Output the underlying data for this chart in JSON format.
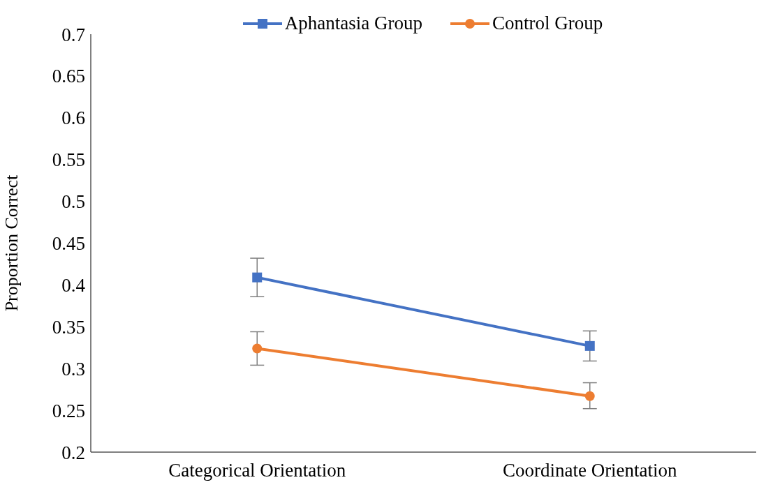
{
  "chart_data": {
    "type": "line",
    "ylabel": "Proportion Correct",
    "categories": [
      "Categorical Orientation",
      "Coordinate Orientation"
    ],
    "series": [
      {
        "name": "Aphantasia Group",
        "color": "#4472c4",
        "marker": "square",
        "values": [
          0.409,
          0.327
        ],
        "errors": [
          [
            0.386,
            0.432
          ],
          [
            0.309,
            0.345
          ]
        ]
      },
      {
        "name": "Control Group",
        "color": "#ed7d31",
        "marker": "circle",
        "values": [
          0.324,
          0.267
        ],
        "errors": [
          [
            0.304,
            0.344
          ],
          [
            0.252,
            0.283
          ]
        ]
      }
    ],
    "ylim": [
      0.2,
      0.7
    ],
    "yticks": [
      0.2,
      0.25,
      0.3,
      0.35,
      0.4,
      0.45,
      0.5,
      0.55,
      0.6,
      0.65,
      0.7
    ],
    "grid": false,
    "legend": "top",
    "line_style": "solid"
  }
}
